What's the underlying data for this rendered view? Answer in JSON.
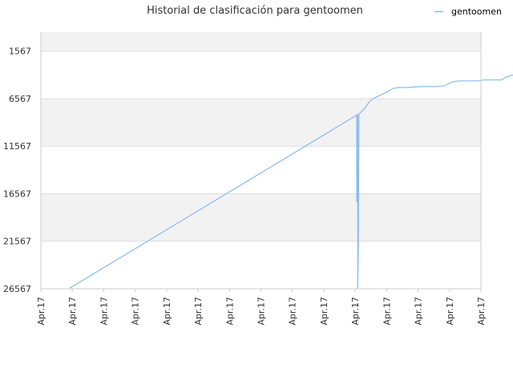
{
  "chart_data": {
    "type": "line",
    "title": "Historial de clasificación para gentoomen",
    "xlabel": "",
    "ylabel": "",
    "y_reversed": true,
    "ylim": [
      26567,
      -433
    ],
    "y_ticks": [
      1567,
      6567,
      11567,
      16567,
      21567,
      26567
    ],
    "x_tick_labels": [
      "Apr.17",
      "Apr.17",
      "Apr.17",
      "Apr.17",
      "Apr.17",
      "Apr.17",
      "Apr.17",
      "Apr.17",
      "Apr.17",
      "Apr.17",
      "Apr.17",
      "Apr.17",
      "Apr.17",
      "Apr.17",
      "Apr.17"
    ],
    "legend": {
      "position": "top-right"
    },
    "grid": true,
    "colors": {
      "series": "#88bbee",
      "band": "#f2f2f2",
      "grid": "#dddddd"
    },
    "series": [
      {
        "name": "gentoomen",
        "points": [
          [
            0.92,
            26500
          ],
          [
            10.05,
            8300
          ],
          [
            10.05,
            17400
          ],
          [
            10.08,
            8200
          ],
          [
            10.08,
            26500
          ],
          [
            10.1,
            21600
          ],
          [
            10.12,
            8200
          ],
          [
            10.3,
            7600
          ],
          [
            10.45,
            6900
          ],
          [
            10.55,
            6600
          ],
          [
            10.8,
            6200
          ],
          [
            11.05,
            5800
          ],
          [
            11.2,
            5500
          ],
          [
            11.4,
            5400
          ],
          [
            11.7,
            5400
          ],
          [
            12.05,
            5300
          ],
          [
            12.6,
            5300
          ],
          [
            12.85,
            5200
          ],
          [
            13.1,
            4800
          ],
          [
            13.3,
            4700
          ],
          [
            13.9,
            4700
          ],
          [
            14.1,
            4600
          ],
          [
            14.5,
            4600
          ],
          [
            14.65,
            4600
          ],
          [
            14.8,
            4300
          ],
          [
            15.1,
            4000
          ]
        ]
      }
    ]
  }
}
